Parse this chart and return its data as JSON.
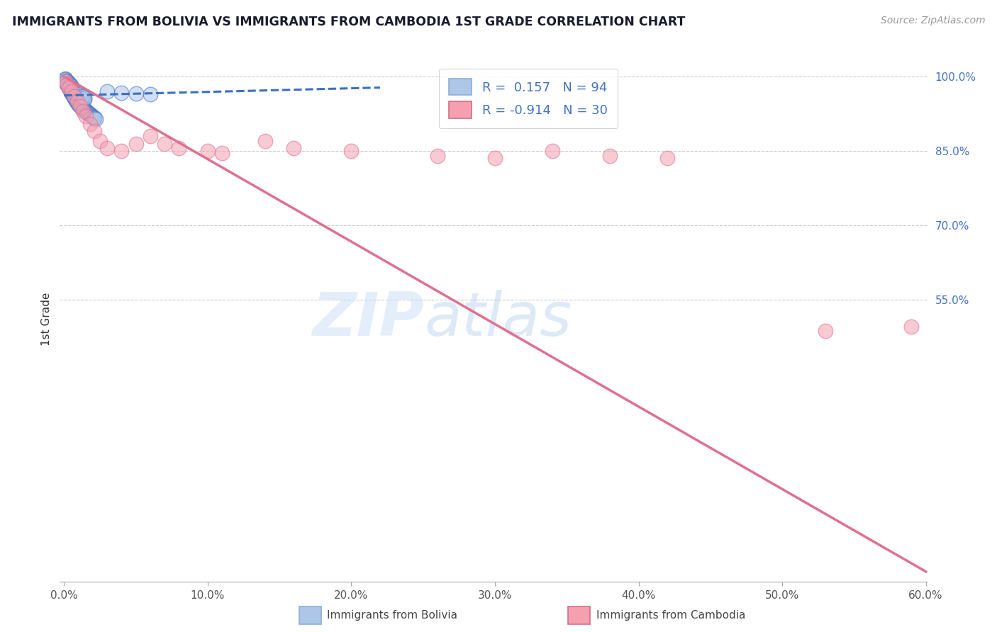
{
  "title": "IMMIGRANTS FROM BOLIVIA VS IMMIGRANTS FROM CAMBODIA 1ST GRADE CORRELATION CHART",
  "source": "Source: ZipAtlas.com",
  "ylabel": "1st Grade",
  "xlabel": "",
  "bolivia_R": 0.157,
  "bolivia_N": 94,
  "cambodia_R": -0.914,
  "cambodia_N": 30,
  "xlim": [
    -0.003,
    0.601
  ],
  "ylim": [
    -0.02,
    1.04
  ],
  "xticks": [
    0.0,
    0.1,
    0.2,
    0.3,
    0.4,
    0.5,
    0.6
  ],
  "xticklabels": [
    "0.0%",
    "10.0%",
    "20.0%",
    "30.0%",
    "40.0%",
    "50.0%",
    "60.0%"
  ],
  "yticks_right": [
    1.0,
    0.85,
    0.7,
    0.55
  ],
  "yticklabels_right": [
    "100.0%",
    "85.0%",
    "70.0%",
    "55.0%"
  ],
  "bolivia_color": "#aec6e8",
  "cambodia_color": "#f4a0b0",
  "bolivia_line_color": "#3a6fc4",
  "cambodia_line_color": "#e07090",
  "watermark_zip": "ZIP",
  "watermark_atlas": "atlas",
  "bolivia_x": [
    0.001,
    0.002,
    0.002,
    0.003,
    0.003,
    0.003,
    0.004,
    0.004,
    0.004,
    0.005,
    0.005,
    0.005,
    0.006,
    0.006,
    0.006,
    0.007,
    0.007,
    0.007,
    0.008,
    0.008,
    0.008,
    0.009,
    0.009,
    0.009,
    0.01,
    0.01,
    0.01,
    0.011,
    0.011,
    0.012,
    0.012,
    0.013,
    0.013,
    0.014,
    0.014,
    0.015,
    0.015,
    0.016,
    0.016,
    0.017,
    0.017,
    0.018,
    0.018,
    0.019,
    0.019,
    0.02,
    0.02,
    0.021,
    0.021,
    0.022,
    0.001,
    0.001,
    0.002,
    0.002,
    0.003,
    0.003,
    0.004,
    0.004,
    0.005,
    0.005,
    0.006,
    0.006,
    0.007,
    0.008,
    0.009,
    0.01,
    0.011,
    0.012,
    0.013,
    0.014,
    0.001,
    0.001,
    0.002,
    0.002,
    0.003,
    0.003,
    0.004,
    0.004,
    0.005,
    0.005,
    0.006,
    0.006,
    0.007,
    0.008,
    0.009,
    0.01,
    0.011,
    0.012,
    0.013,
    0.014,
    0.03,
    0.04,
    0.05,
    0.06
  ],
  "bolivia_y": [
    0.99,
    0.988,
    0.985,
    0.982,
    0.98,
    0.978,
    0.976,
    0.974,
    0.972,
    0.97,
    0.968,
    0.966,
    0.965,
    0.963,
    0.961,
    0.96,
    0.958,
    0.956,
    0.955,
    0.953,
    0.951,
    0.95,
    0.948,
    0.947,
    0.946,
    0.944,
    0.943,
    0.942,
    0.94,
    0.939,
    0.938,
    0.936,
    0.935,
    0.934,
    0.932,
    0.931,
    0.93,
    0.929,
    0.928,
    0.926,
    0.925,
    0.924,
    0.923,
    0.922,
    0.92,
    0.919,
    0.918,
    0.917,
    0.916,
    0.915,
    0.993,
    0.991,
    0.989,
    0.987,
    0.985,
    0.983,
    0.981,
    0.979,
    0.977,
    0.975,
    0.973,
    0.971,
    0.969,
    0.967,
    0.965,
    0.963,
    0.961,
    0.959,
    0.957,
    0.955,
    0.996,
    0.994,
    0.992,
    0.99,
    0.988,
    0.986,
    0.984,
    0.982,
    0.98,
    0.978,
    0.976,
    0.974,
    0.972,
    0.97,
    0.968,
    0.966,
    0.964,
    0.962,
    0.96,
    0.958,
    0.97,
    0.968,
    0.966,
    0.964
  ],
  "cambodia_x": [
    0.001,
    0.002,
    0.003,
    0.005,
    0.007,
    0.009,
    0.011,
    0.013,
    0.015,
    0.018,
    0.021,
    0.025,
    0.03,
    0.04,
    0.05,
    0.06,
    0.07,
    0.08,
    0.1,
    0.11,
    0.14,
    0.16,
    0.2,
    0.26,
    0.3,
    0.34,
    0.38,
    0.42,
    0.53,
    0.59
  ],
  "cambodia_y": [
    0.99,
    0.985,
    0.978,
    0.97,
    0.96,
    0.95,
    0.94,
    0.93,
    0.92,
    0.905,
    0.89,
    0.87,
    0.855,
    0.85,
    0.865,
    0.88,
    0.865,
    0.855,
    0.85,
    0.845,
    0.87,
    0.855,
    0.85,
    0.84,
    0.835,
    0.85,
    0.84,
    0.835,
    0.487,
    0.495
  ],
  "cambodia_trend_x": [
    0.0,
    0.6
  ],
  "cambodia_trend_y": [
    1.0,
    0.0
  ],
  "bolivia_trend_x": [
    0.0,
    0.22
  ],
  "bolivia_trend_y": [
    0.962,
    0.978
  ]
}
